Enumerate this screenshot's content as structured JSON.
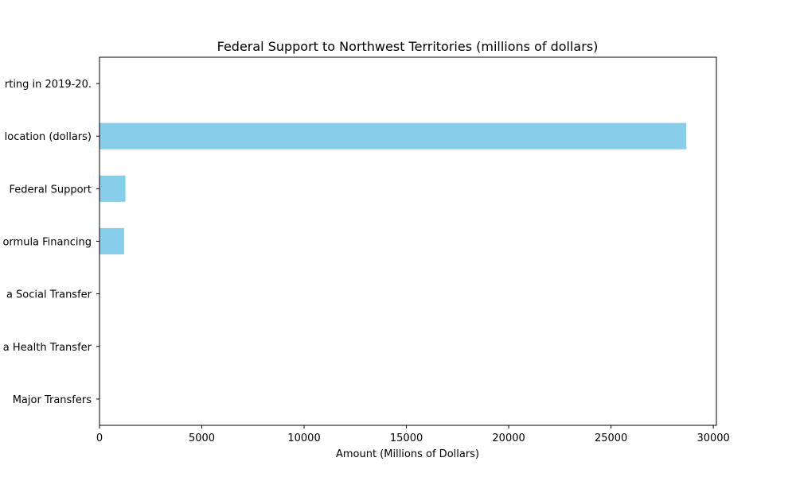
{
  "chart_data": {
    "type": "bar",
    "orientation": "horizontal",
    "title": "Federal Support to Northwest Territories (millions of dollars)",
    "xlabel": "Amount (Millions of Dollars)",
    "ylabel": "",
    "categories_visible_text": [
      "Major Transfers",
      "a Health Transfer",
      "a Social Transfer",
      "ormula Financing",
      " Federal Support",
      "location (dollars)",
      "rting in 2019-20."
    ],
    "values": [
      0,
      0,
      0,
      1200,
      1270,
      28680,
      0
    ],
    "xlim": [
      0,
      30150
    ],
    "xticks": [
      0,
      5000,
      10000,
      15000,
      20000,
      25000,
      30000
    ],
    "bar_color": "#87ceeb",
    "grid": false,
    "legend": "none"
  }
}
